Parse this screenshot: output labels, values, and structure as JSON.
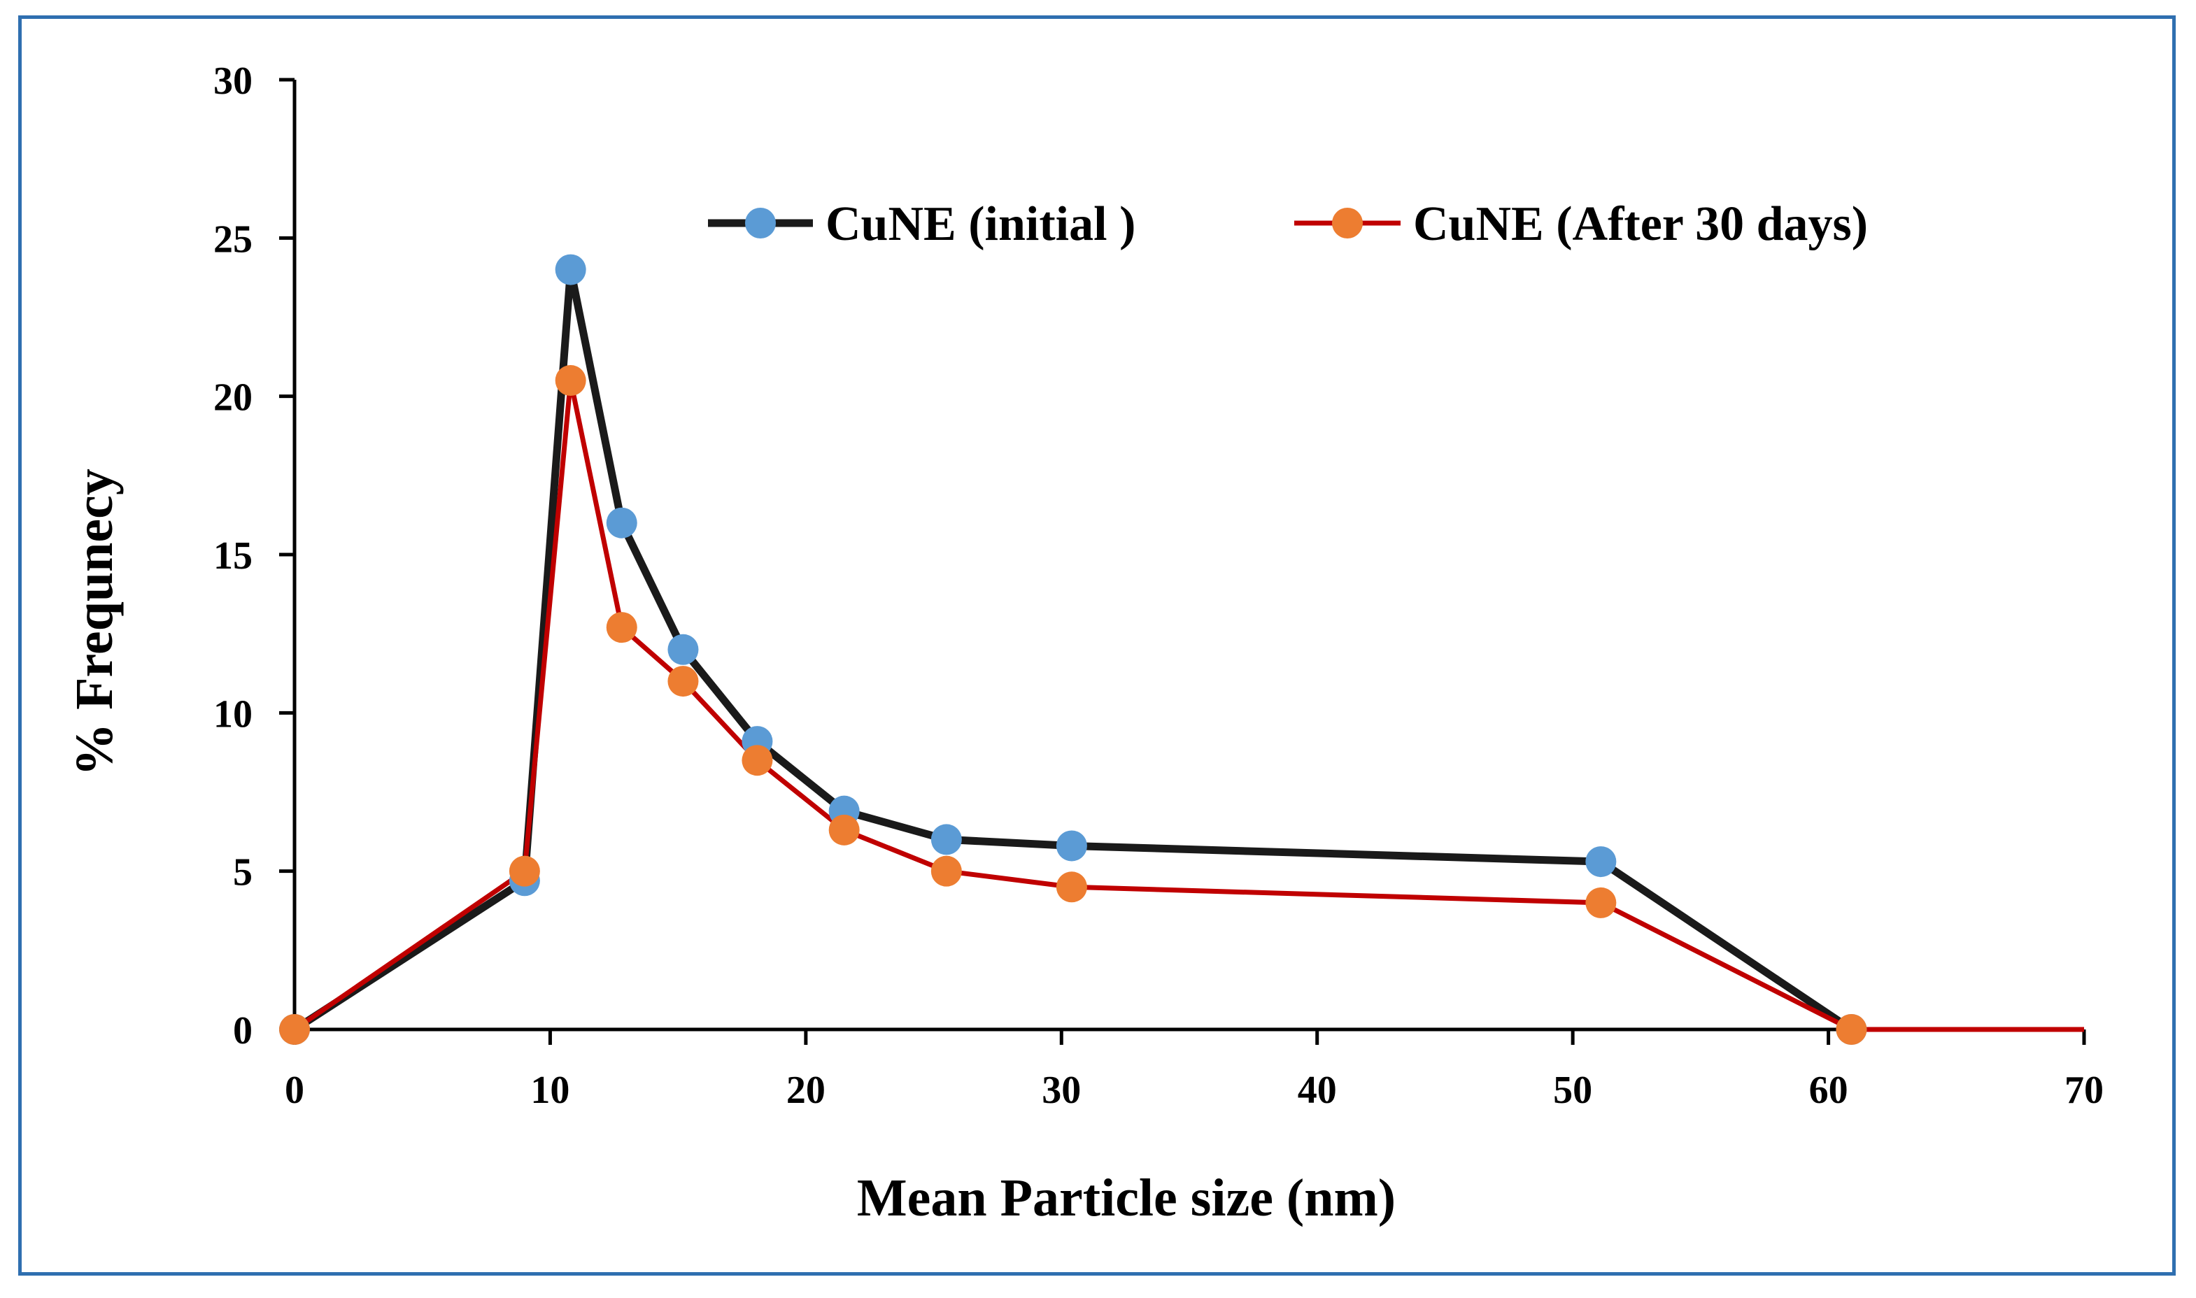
{
  "chart_data": {
    "type": "line",
    "title": "",
    "xlabel": "Mean Particle size (nm)",
    "ylabel": "% Frequnecy",
    "xlim": [
      0,
      70
    ],
    "ylim": [
      0,
      30
    ],
    "xticks": [
      0,
      10,
      20,
      30,
      40,
      50,
      60,
      70
    ],
    "yticks": [
      0,
      5,
      10,
      15,
      20,
      25,
      30
    ],
    "grid": false,
    "legend_position": "top-right",
    "series": [
      {
        "name": "CuNE (initial )",
        "line_color": "#1a1a1a",
        "marker_color": "#5B9BD5",
        "x": [
          0,
          9,
          10.8,
          12.8,
          15.2,
          18.1,
          21.5,
          25.5,
          30.4,
          51.1,
          60.9
        ],
        "y": [
          0,
          4.7,
          24,
          16,
          12,
          9.1,
          6.9,
          6,
          5.8,
          5.3,
          0
        ]
      },
      {
        "name": "CuNE (After 30 days)",
        "line_color": "#C00000",
        "marker_color": "#ED7D31",
        "x": [
          0,
          9,
          10.8,
          12.8,
          15.2,
          18.1,
          21.5,
          25.5,
          30.4,
          51.1,
          60.9,
          70
        ],
        "y": [
          0,
          5,
          20.5,
          12.7,
          11,
          8.5,
          6.3,
          5,
          4.5,
          4,
          0,
          0
        ],
        "markers_on_points": 11
      }
    ]
  }
}
